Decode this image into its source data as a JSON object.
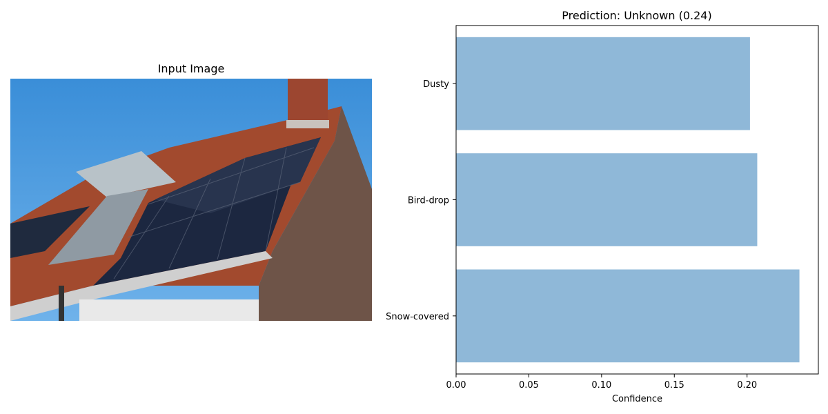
{
  "left_panel": {
    "title": "Input Image",
    "image_description_icon": "solar-panel-roof-photo"
  },
  "chart_data": {
    "type": "bar",
    "orientation": "horizontal",
    "title": "Prediction: Unknown (0.24)",
    "xlabel": "Confidence",
    "ylabel": "",
    "categories": [
      "Snow-covered",
      "Bird-drop",
      "Dusty"
    ],
    "values": [
      0.236,
      0.207,
      0.202
    ],
    "xlim": [
      0,
      0.249
    ],
    "xticks": [
      0.0,
      0.05,
      0.1,
      0.15,
      0.2
    ],
    "xtick_labels": [
      "0.00",
      "0.05",
      "0.10",
      "0.15",
      "0.20"
    ],
    "bar_color": "#8fb8d8",
    "grid": false,
    "legend": "none"
  }
}
